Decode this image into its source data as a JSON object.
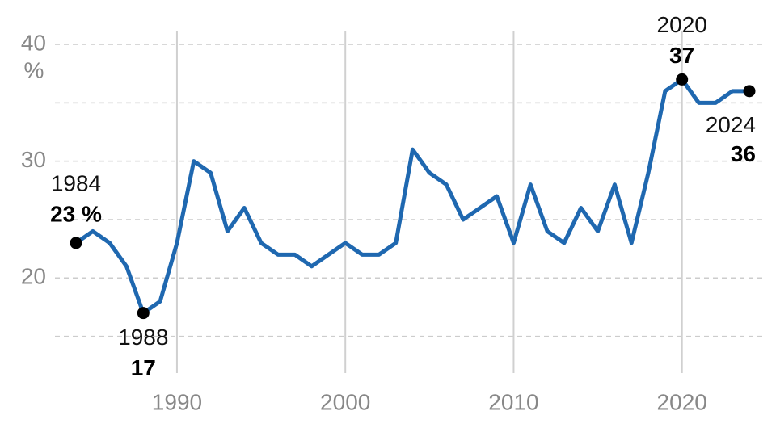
{
  "chart_data": {
    "type": "line",
    "x": [
      1984,
      1985,
      1986,
      1987,
      1988,
      1989,
      1990,
      1991,
      1992,
      1993,
      1994,
      1995,
      1996,
      1997,
      1998,
      1999,
      2000,
      2001,
      2002,
      2003,
      2004,
      2005,
      2006,
      2007,
      2008,
      2009,
      2010,
      2011,
      2012,
      2013,
      2014,
      2015,
      2016,
      2017,
      2018,
      2019,
      2020,
      2021,
      2022,
      2023,
      2024
    ],
    "series": [
      {
        "color": "#1f68b0",
        "values": [
          23,
          24,
          23,
          21,
          17,
          18,
          23,
          30,
          29,
          24,
          26,
          23,
          22,
          22,
          21,
          22,
          23,
          22,
          22,
          23,
          31,
          29,
          28,
          25,
          26,
          27,
          23,
          28,
          24,
          23,
          26,
          24,
          28,
          23,
          29,
          36,
          37,
          35,
          35,
          36,
          36
        ],
        "value_labels": [
          "23 %",
          null,
          null,
          null,
          "17",
          null,
          null,
          null,
          null,
          null,
          null,
          null,
          null,
          null,
          null,
          null,
          null,
          null,
          null,
          null,
          null,
          null,
          null,
          null,
          null,
          null,
          null,
          null,
          null,
          null,
          null,
          null,
          null,
          null,
          null,
          null,
          "37",
          null,
          null,
          null,
          "36"
        ]
      }
    ],
    "xlim": [
      1984,
      2024
    ],
    "xticks": [
      1990,
      2000,
      2010,
      2020
    ],
    "ylim": [
      12,
      40
    ],
    "yticks": [
      20,
      30,
      40
    ],
    "minor_yticks": [
      15,
      25,
      35
    ],
    "y_unit": "%",
    "grid": true
  }
}
